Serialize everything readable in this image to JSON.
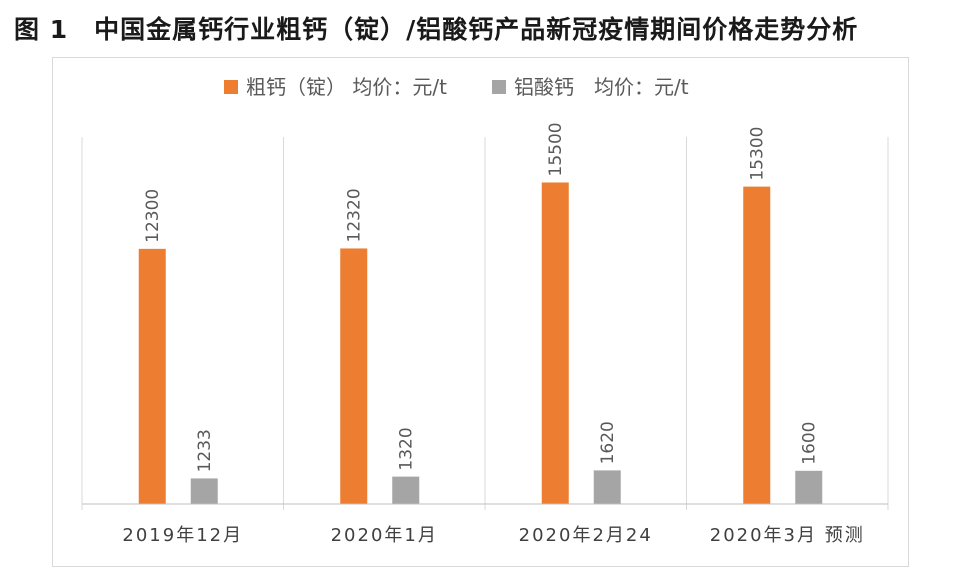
{
  "figure": {
    "title": "图 1　中国金属钙行业粗钙（锭）/铝酸钙产品新冠疫情期间价格走势分析"
  },
  "chart_data": {
    "type": "bar",
    "title": "图 1　中国金属钙行业粗钙（锭）/铝酸钙产品新冠疫情期间价格走势分析",
    "categories": [
      "2019年12月",
      "2020年1月",
      "2020年2月24",
      "2020年3月 预测"
    ],
    "series": [
      {
        "name": "粗钙（锭） 均价：元/t",
        "color": "#ED7D31",
        "values": [
          12300,
          12320,
          15500,
          15300
        ]
      },
      {
        "name": "铝酸钙　均价：元/t",
        "color": "#A5A5A5",
        "values": [
          1233,
          1320,
          1620,
          1600
        ]
      }
    ],
    "ylim": [
      0,
      17500
    ],
    "y_axis_visible": false,
    "grid": "vertical category separators",
    "legend_position": "top",
    "data_labels": "rotated vertical above bars"
  }
}
